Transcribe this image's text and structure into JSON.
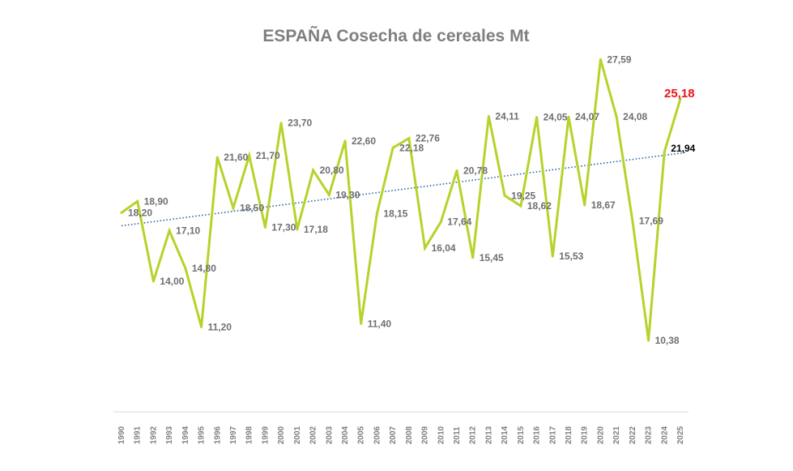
{
  "chart_data": {
    "type": "line",
    "title": "ESPAÑA Cosecha de cereales    Mt",
    "xlabel": "",
    "ylabel": "",
    "categories": [
      "1990",
      "1991",
      "1992",
      "1993",
      "1994",
      "1995",
      "1996",
      "1997",
      "1998",
      "1999",
      "2000",
      "2001",
      "2002",
      "2003",
      "2004",
      "2005",
      "2006",
      "2007",
      "2008",
      "2009",
      "2010",
      "2011",
      "2012",
      "2013",
      "2014",
      "2015",
      "2016",
      "2017",
      "2018",
      "2019",
      "2020",
      "2021",
      "2022",
      "2023",
      "2024",
      "2025"
    ],
    "series": [
      {
        "name": "",
        "color": "#b5d32a",
        "values": [
          18.2,
          18.9,
          14.0,
          17.1,
          14.8,
          11.2,
          21.6,
          18.5,
          21.7,
          17.3,
          23.7,
          17.18,
          20.8,
          19.3,
          22.6,
          11.4,
          18.15,
          22.18,
          22.76,
          16.04,
          17.64,
          20.78,
          15.45,
          24.11,
          19.25,
          18.62,
          24.05,
          15.53,
          24.07,
          18.67,
          27.59,
          24.08,
          17.69,
          10.38,
          21.94,
          25.18
        ],
        "labels": [
          "18,20",
          "18,90",
          "14,00",
          "17,10",
          "14,80",
          "11,20",
          "21,60",
          "18,50",
          "21,70",
          "17,30",
          "23,70",
          "17,18",
          "20,80",
          "19,30",
          "22,60",
          "11,40",
          "18,15",
          "22,18",
          "22,76",
          "16,04",
          "17,64",
          "20,78",
          "15,45",
          "24,11",
          "19,25",
          "18,62",
          "24,05",
          "15,53",
          "24,07",
          "18,67",
          "27,59",
          "24,08",
          "17,69",
          "10,38",
          "21,94",
          "25,18"
        ],
        "highlight_colors": {
          "35": "#e8141b",
          "34": "#000000"
        }
      },
      {
        "name": "",
        "type": "trendline",
        "style": "dotted",
        "color": "#2e5fa3",
        "values_start_end": [
          17.4,
          21.9
        ]
      }
    ],
    "ylim": [
      6,
      29
    ],
    "grid": false,
    "legend": "none"
  }
}
